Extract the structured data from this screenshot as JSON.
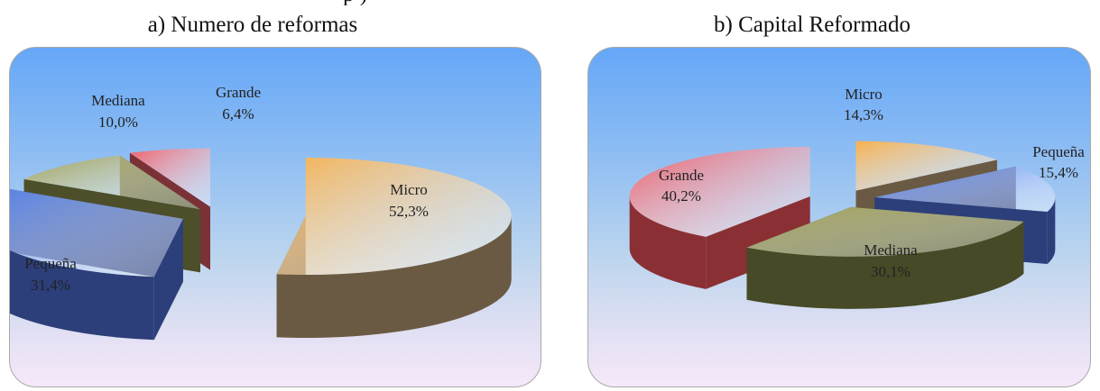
{
  "top_fragment": "p                   )",
  "chart_data": [
    {
      "type": "pie",
      "title": "a) Numero de reformas",
      "slices": [
        {
          "label": "Micro",
          "value": 52.3,
          "value_label": "52,3%",
          "color": "#f7b14f",
          "side": "#6b5a43"
        },
        {
          "label": "Pequeña",
          "value": 31.4,
          "value_label": "31,4%",
          "color": "#4f7de6",
          "side": "#2c3f7a"
        },
        {
          "label": "Mediana",
          "value": 10.0,
          "value_label": "10,0%",
          "color": "#9fa052",
          "side": "#4d4f2a"
        },
        {
          "label": "Grande",
          "value": 6.4,
          "value_label": "6,4%",
          "color": "#f0606a",
          "side": "#7a3236"
        }
      ]
    },
    {
      "type": "pie",
      "title": "b) Capital Reformado",
      "slices": [
        {
          "label": "Micro",
          "value": 14.3,
          "value_label": "14,3%",
          "color": "#f7b14f",
          "side": "#6b5a43"
        },
        {
          "label": "Pequeña",
          "value": 15.4,
          "value_label": "15,4%",
          "color": "#5b86ee",
          "side": "#2c3f7a"
        },
        {
          "label": "Mediana",
          "value": 30.1,
          "value_label": "30,1%",
          "color": "#9fa052",
          "side": "#464a26"
        },
        {
          "label": "Grande",
          "value": 40.2,
          "value_label": "40,2%",
          "color": "#ef5a64",
          "side": "#8a3034"
        }
      ]
    }
  ]
}
